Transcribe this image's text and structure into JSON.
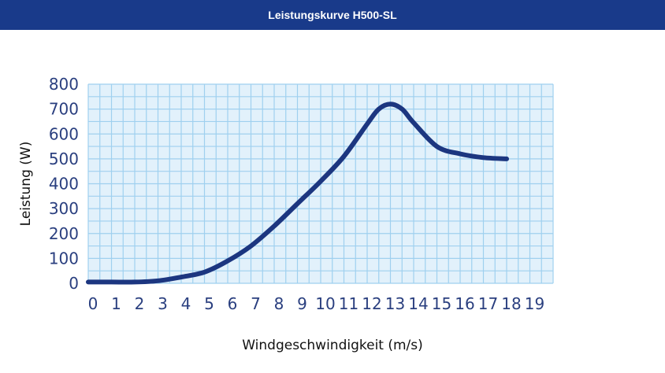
{
  "title": "Leistungskurve H500-SL",
  "colors": {
    "title_bar": "#193a8a",
    "title_text": "#ffffff",
    "plot_background": "#e2f1fb",
    "grid": "#9fd0ef",
    "line": "#1c3680",
    "tick_text": "#2a3f7f"
  },
  "chart_data": {
    "type": "line",
    "title": "Leistungskurve H500-SL",
    "xlabel": "Windgeschwindigkeit (m/s)",
    "ylabel": "Leistung (W)",
    "xlim": [
      0,
      20
    ],
    "ylim": [
      0,
      800
    ],
    "x_ticks": [
      "0",
      "1",
      "2",
      "3",
      "4",
      "5",
      "6",
      "7",
      "8",
      "9",
      "10",
      "11",
      "12",
      "13",
      "14",
      "15",
      "16",
      "17",
      "18",
      "19"
    ],
    "y_ticks": [
      "0",
      "100",
      "200",
      "300",
      "400",
      "500",
      "600",
      "700",
      "800"
    ],
    "grid": true,
    "legend": "none",
    "series": [
      {
        "x": [
          0,
          1,
          2,
          3,
          4,
          5,
          6,
          7,
          8,
          9,
          10,
          11,
          12,
          12.5,
          13,
          13.5,
          14,
          15,
          16,
          17,
          18
        ],
        "y": [
          5,
          5,
          5,
          10,
          25,
          45,
          90,
          150,
          230,
          320,
          410,
          510,
          640,
          700,
          720,
          700,
          645,
          550,
          520,
          505,
          500
        ]
      }
    ]
  }
}
